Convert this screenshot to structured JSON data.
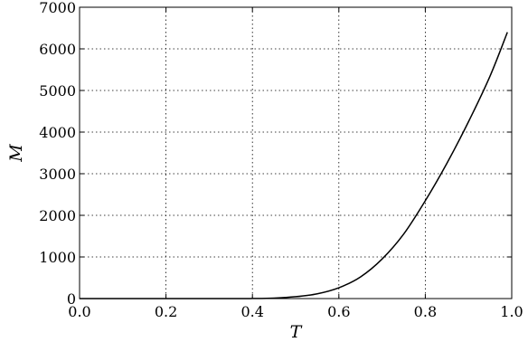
{
  "chart_data": {
    "type": "line",
    "title": "",
    "xlabel": "T",
    "ylabel": "M",
    "xlim": [
      0.0,
      1.0
    ],
    "ylim": [
      0,
      7000
    ],
    "x_ticks": [
      "0.0",
      "0.2",
      "0.4",
      "0.6",
      "0.8",
      "1.0"
    ],
    "y_ticks": [
      "0",
      "1000",
      "2000",
      "3000",
      "4000",
      "5000",
      "6000",
      "7000"
    ],
    "grid": true,
    "legend": "none",
    "series": [
      {
        "color": "#000000",
        "x": [
          0.0,
          0.35,
          0.4,
          0.45,
          0.5,
          0.55,
          0.6,
          0.65,
          0.7,
          0.75,
          0.8,
          0.85,
          0.9,
          0.95,
          0.99
        ],
        "y": [
          0,
          0,
          2,
          12,
          45,
          115,
          260,
          520,
          950,
          1550,
          2350,
          3250,
          4250,
          5350,
          6400
        ]
      }
    ]
  }
}
